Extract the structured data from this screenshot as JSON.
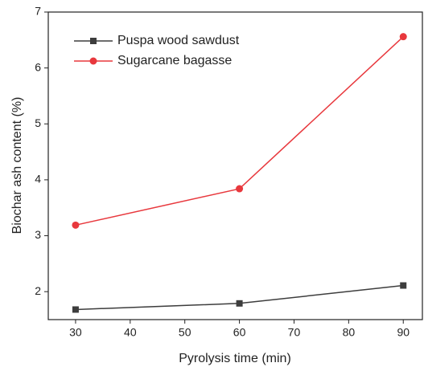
{
  "chart_data": {
    "type": "line",
    "x_label": "Pyrolysis time (min)",
    "y_label": "Biochar ash content (%)",
    "x": [
      30,
      60,
      90
    ],
    "series": [
      {
        "name": "Puspa wood sawdust",
        "color": "#3d3d3d",
        "marker": "square",
        "values": [
          1.68,
          1.79,
          2.11
        ]
      },
      {
        "name": "Sugarcane bagasse",
        "color": "#e8383d",
        "marker": "circle",
        "values": [
          3.19,
          3.84,
          6.56
        ]
      }
    ],
    "xlim": [
      25,
      93.5
    ],
    "xticks": [
      30,
      40,
      50,
      60,
      70,
      80,
      90
    ],
    "ylim": [
      1.5,
      7
    ],
    "yticks": [
      2,
      3,
      4,
      5,
      6,
      7
    ],
    "legend": "upper left"
  }
}
